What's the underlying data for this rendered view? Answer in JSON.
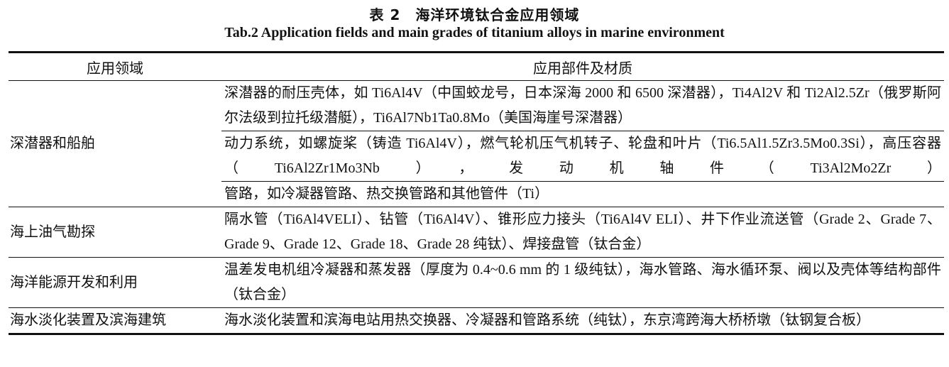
{
  "caption": {
    "zh": "表 2　海洋环境钛合金应用领域",
    "en": "Tab.2 Application fields and main grades of titanium alloys in marine environment"
  },
  "table": {
    "headers": [
      "应用领域",
      "应用部件及材质"
    ],
    "rows": [
      {
        "field": "深潜器和船舶",
        "items": [
          "深潜器的耐压壳体，如 Ti6Al4V（中国蛟龙号，日本深海 2000 和 6500 深潜器），Ti4Al2V 和 Ti2Al2.5Zr（俄罗斯阿尔法级到拉托级潜艇），Ti6Al7Nb1Ta0.8Mo（美国海崖号深潜器）",
          "动力系统，如螺旋桨（铸造 Ti6Al4V），燃气轮机压气机转子、轮盘和叶片（Ti6.5Al1.5Zr3.5Mo0.3Si），高压容器（Ti6Al2Zr1Mo3Nb），发动机轴件（Ti3Al2Mo2Zr）",
          "管路，如冷凝器管路、热交换管路和其他管件（Ti）"
        ]
      },
      {
        "field": "海上油气勘探",
        "items": [
          "隔水管（Ti6Al4VELI）、钻管（Ti6Al4V）、锥形应力接头（Ti6Al4V ELI）、井下作业流送管（Grade 2、Grade 7、Grade 9、Grade 12、Grade 18、Grade 28 纯钛）、焊接盘管（钛合金）"
        ]
      },
      {
        "field": "海洋能源开发和利用",
        "items": [
          "温差发电机组冷凝器和蒸发器（厚度为 0.4~0.6 mm 的 1 级纯钛），海水管路、海水循环泵、阀以及壳体等结构部件（钛合金）"
        ]
      },
      {
        "field": "海水淡化装置及滨海建筑",
        "items": [
          "海水淡化装置和滨海电站用热交换器、冷凝器和管路系统（纯钛），东京湾跨海大桥桥墩（钛钢复合板）"
        ]
      }
    ]
  }
}
